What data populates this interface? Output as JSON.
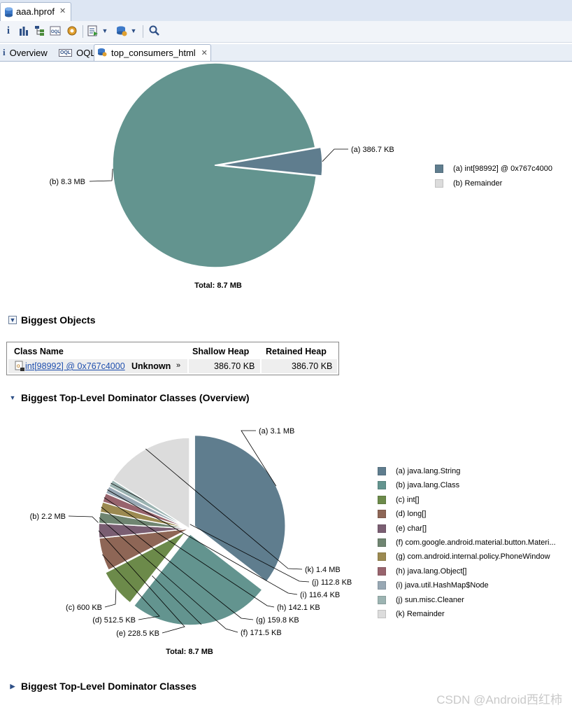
{
  "editor": {
    "tab_label": "aaa.hprof"
  },
  "toolbar": {
    "icons": [
      "info-icon",
      "histogram-icon",
      "dominator-tree-icon",
      "oql-icon",
      "heap-dump-overview-icon",
      "run-report-icon",
      "query-browser-icon",
      "find-object-icon"
    ]
  },
  "subtabs": [
    {
      "label": "Overview",
      "icon": "info-icon"
    },
    {
      "label": "OQL",
      "icon": "oql-icon"
    },
    {
      "label": "top_consumers_html",
      "icon": "report-icon"
    }
  ],
  "colors": {
    "a": "#5f7d8e",
    "b": "#63948f",
    "c": "#6c8a4a",
    "d": "#8e6656",
    "e": "#7a5e72",
    "f": "#6f8571",
    "g": "#9c8a51",
    "h": "#98646d",
    "i": "#98a8b4",
    "j": "#9cb4b2",
    "k": "#dcdcdc"
  },
  "chart_data": [
    {
      "type": "pie",
      "unit": "MB",
      "total_label": "Total: 8.7 MB",
      "slices": [
        {
          "key": "a",
          "label": "(a)  386.7 KB",
          "legend": "(a)  int[98992] @ 0x767c4000",
          "value": 0.3867
        },
        {
          "key": "b",
          "label": "(b)  8.3 MB",
          "legend": "(b)  Remainder",
          "value": 8.3
        }
      ]
    },
    {
      "type": "pie",
      "unit": "MB",
      "total_label": "Total: 8.7 MB",
      "slices": [
        {
          "key": "a",
          "label": "(a)  3.1 MB",
          "legend": "(a)  java.lang.String",
          "value": 3.1
        },
        {
          "key": "b",
          "label": "(b)  2.2 MB",
          "legend": "(b)  java.lang.Class",
          "value": 2.2
        },
        {
          "key": "c",
          "label": "(c)  600 KB",
          "legend": "(c)  int[]",
          "value": 0.6
        },
        {
          "key": "d",
          "label": "(d)  512.5 KB",
          "legend": "(d)  long[]",
          "value": 0.5125
        },
        {
          "key": "e",
          "label": "(e)  228.5 KB",
          "legend": "(e)  char[]",
          "value": 0.2285
        },
        {
          "key": "f",
          "label": "(f)  171.5 KB",
          "legend": "(f)  com.google.android.material.button.Materi...",
          "value": 0.1715
        },
        {
          "key": "g",
          "label": "(g)  159.8 KB",
          "legend": "(g)  com.android.internal.policy.PhoneWindow",
          "value": 0.1598
        },
        {
          "key": "h",
          "label": "(h)  142.1 KB",
          "legend": "(h)  java.lang.Object[]",
          "value": 0.1421
        },
        {
          "key": "i",
          "label": "(i)  116.4 KB",
          "legend": "(i)  java.util.HashMap$Node",
          "value": 0.1164
        },
        {
          "key": "j",
          "label": "(j)  112.8 KB",
          "legend": "(j)  sun.misc.Cleaner",
          "value": 0.1128
        },
        {
          "key": "k",
          "label": "(k)  1.4 MB",
          "legend": "(k)  Remainder",
          "value": 1.4
        }
      ]
    }
  ],
  "biggest_objects": {
    "title": "Biggest Objects",
    "headers": {
      "class_name": "Class Name",
      "shallow": "Shallow Heap",
      "retained": "Retained Heap"
    },
    "row": {
      "object": "int[98992] @ 0x767c4000",
      "kind": "Unknown",
      "more": "»",
      "shallow": "386.70 KB",
      "retained": "386.70 KB"
    }
  },
  "dominator_overview": {
    "title": "Biggest Top-Level Dominator Classes (Overview)"
  },
  "dominator_classes": {
    "title": "Biggest Top-Level Dominator Classes"
  },
  "watermark": "CSDN @Android西红柿"
}
